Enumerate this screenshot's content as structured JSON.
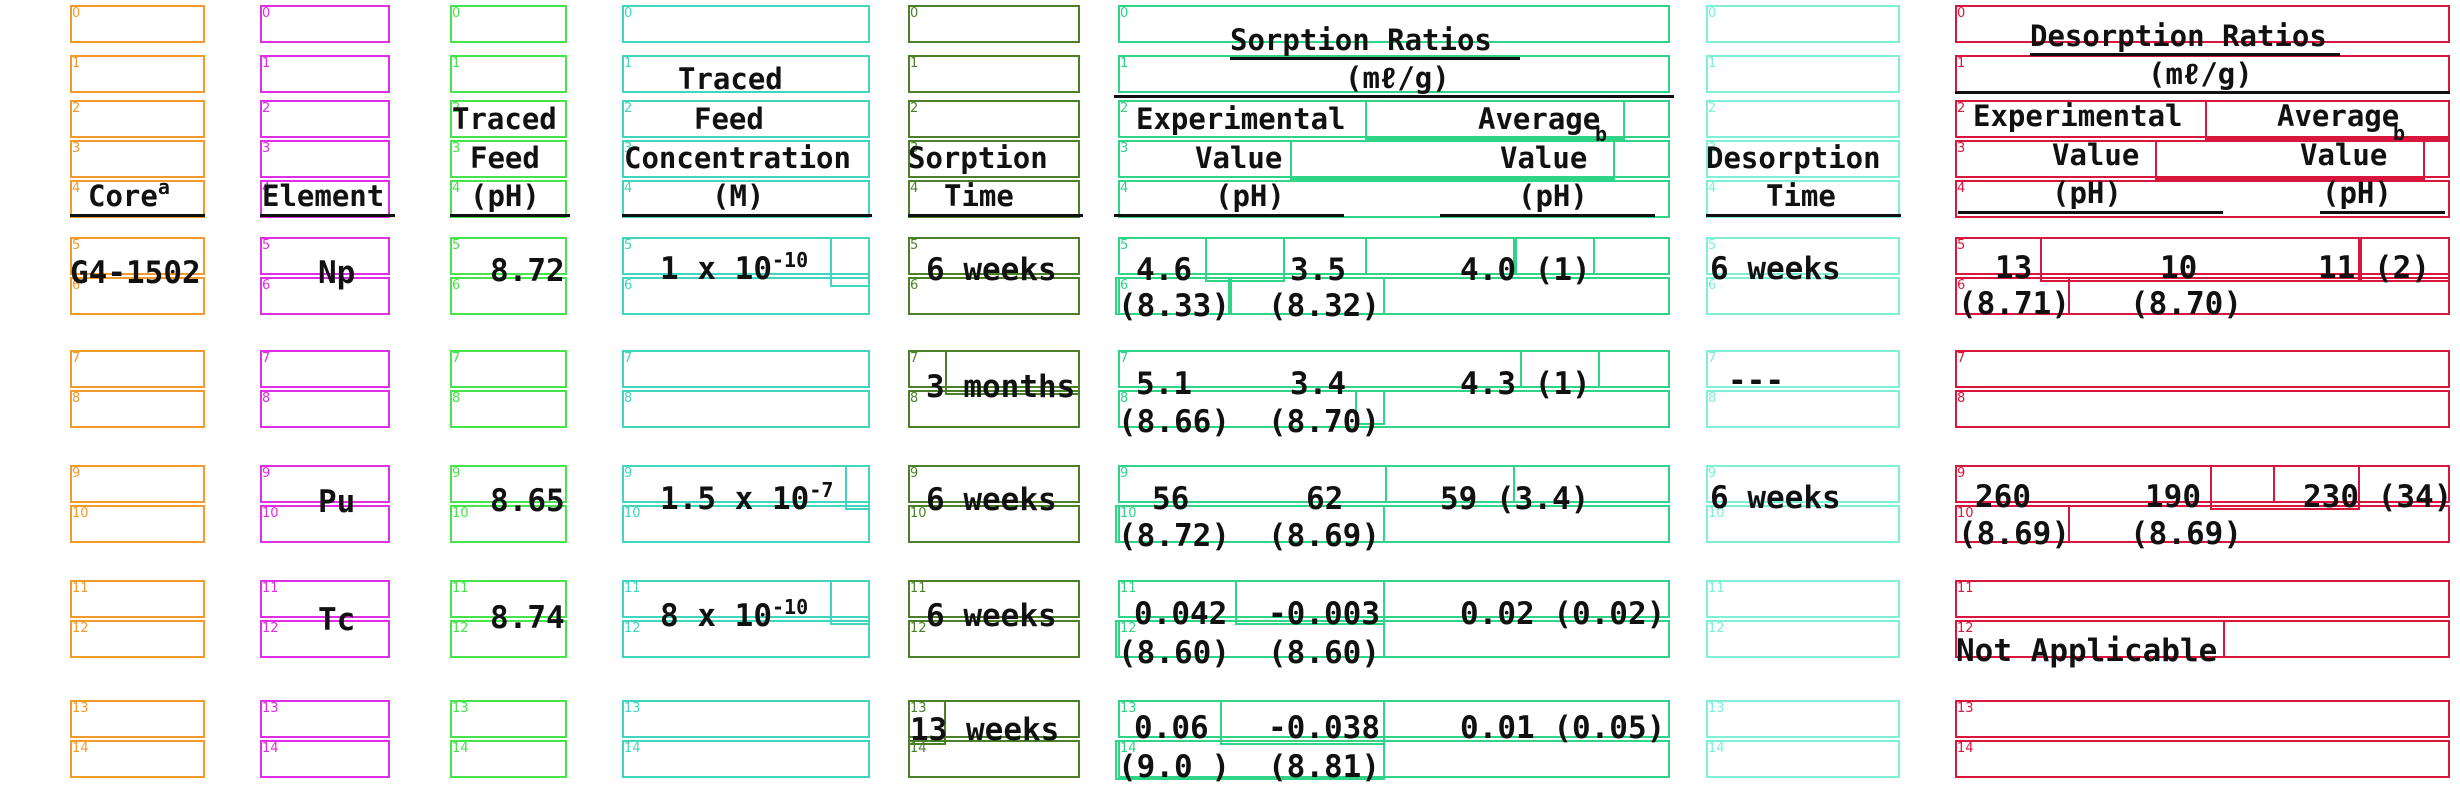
{
  "header": {
    "core": "Core",
    "core_sup": "a",
    "element": "Element",
    "traced_feed_ph": [
      "Traced",
      "Feed",
      "(pH)"
    ],
    "traced_feed_conc": [
      "Traced",
      "Feed",
      "Concentration",
      "(M)"
    ],
    "sorption_time": [
      "Sorption",
      "Time"
    ],
    "sorption_ratios": "Sorption Ratios",
    "sorption_units": "(mℓ/g)",
    "sorp_exp": [
      "Experimental",
      "Value",
      "(pH)"
    ],
    "sorp_avg": [
      "Average",
      "Value",
      "(pH)"
    ],
    "avg_sup": "b",
    "desorption_time": [
      "Desorption",
      "Time"
    ],
    "desorption_ratios": "Desorption Ratios",
    "desorption_units": "(mℓ/g)",
    "desorp_exp": [
      "Experimental",
      "Value",
      "(pH)"
    ],
    "desorp_avg": [
      "Average",
      "Value",
      "(pH)"
    ]
  },
  "rows": [
    {
      "core": "G4-1502",
      "element": "Np",
      "feed_ph": "8.72",
      "conc": "1 x 10",
      "conc_exp": "-10",
      "time": "6 weeks",
      "sorp_v1": "4.6",
      "sorp_v2": "3.5",
      "sorp_ph1": "(8.33)",
      "sorp_ph2": "(8.32)",
      "sorp_avg": "4.0 (1)",
      "desorp_time": "6 weeks",
      "des_v1": "13",
      "des_v2": "10",
      "des_ph1": "(8.71)",
      "des_ph2": "(8.70)",
      "des_avg": "11 (2)"
    },
    {
      "core": "",
      "element": "",
      "feed_ph": "",
      "conc": "",
      "conc_exp": "",
      "time": "3 months",
      "sorp_v1": "5.1",
      "sorp_v2": "3.4",
      "sorp_ph1": "(8.66)",
      "sorp_ph2": "(8.70)",
      "sorp_avg": "4.3 (1)",
      "desorp_time": "---",
      "des_v1": "",
      "des_v2": "",
      "des_ph1": "",
      "des_ph2": "",
      "des_avg": ""
    },
    {
      "core": "",
      "element": "Pu",
      "feed_ph": "8.65",
      "conc": "1.5 x 10",
      "conc_exp": "-7",
      "time": "6 weeks",
      "sorp_v1": "56",
      "sorp_v2": "62",
      "sorp_ph1": "(8.72)",
      "sorp_ph2": "(8.69)",
      "sorp_avg": "59 (3.4)",
      "desorp_time": "6 weeks",
      "des_v1": "260",
      "des_v2": "190",
      "des_ph1": "(8.69)",
      "des_ph2": "(8.69)",
      "des_avg": "230 (34)"
    },
    {
      "core": "",
      "element": "Tc",
      "feed_ph": "8.74",
      "conc": "8 x 10",
      "conc_exp": "-10",
      "time": "6 weeks",
      "sorp_v1": "0.042",
      "sorp_v2": "-0.003",
      "sorp_ph1": "(8.60)",
      "sorp_ph2": "(8.60)",
      "sorp_avg": "0.02 (0.02)",
      "desorp_time": "",
      "des_v1": "",
      "des_v2": "",
      "des_ph1": "Not Applicable",
      "des_ph2": "",
      "des_avg": ""
    },
    {
      "core": "",
      "element": "",
      "feed_ph": "",
      "conc": "",
      "conc_exp": "",
      "time": "13 weeks",
      "sorp_v1": "0.06",
      "sorp_v2": "-0.038",
      "sorp_ph1": "(9.0 )",
      "sorp_ph2": "(8.81)",
      "sorp_avg": "0.01 (0.05)",
      "desorp_time": "",
      "des_v1": "",
      "des_v2": "",
      "des_ph1": "",
      "des_ph2": "",
      "des_avg": ""
    }
  ],
  "colors": {
    "col0": "#f39a2c",
    "col1": "#e02de6",
    "col2": "#46e34a",
    "col3": "#3fd6bd",
    "col4": "#4c7f2a",
    "col5": "#2fd487",
    "col6": "#7df0d6",
    "col7": "#d9163e"
  }
}
